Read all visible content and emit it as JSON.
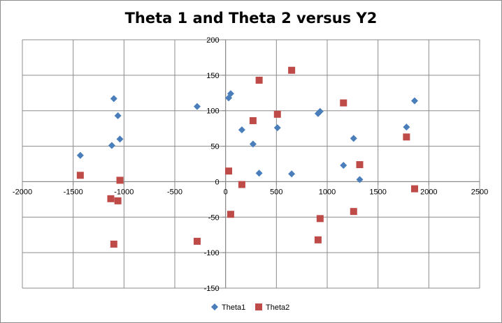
{
  "chart_data": {
    "type": "scatter",
    "title": "Theta 1 and Theta 2 versus Y2",
    "xlabel": "",
    "ylabel": "",
    "xlim": [
      -2000,
      2500
    ],
    "ylim": [
      -150,
      200
    ],
    "xticks": [
      -2000,
      -1500,
      -1000,
      -500,
      0,
      500,
      1000,
      1500,
      2000,
      2500
    ],
    "yticks": [
      -150,
      -100,
      -50,
      0,
      50,
      100,
      150,
      200
    ],
    "xtick_labels": [
      "-2000",
      "-1500",
      "-1000",
      "-500",
      "0",
      "500",
      "1000",
      "1500",
      "2000",
      "2500"
    ],
    "ytick_labels": [
      "-150",
      "-100",
      "-50",
      "0",
      "50",
      "100",
      "150",
      "200"
    ],
    "grid": true,
    "legend": "bottom",
    "series": [
      {
        "name": "Theta1",
        "marker": "diamond",
        "color": "#4a7ebb",
        "points": [
          [
            -1430,
            37
          ],
          [
            -1100,
            117
          ],
          [
            -1120,
            51
          ],
          [
            -1060,
            93
          ],
          [
            -1040,
            60
          ],
          [
            -280,
            106
          ],
          [
            30,
            118
          ],
          [
            50,
            124
          ],
          [
            160,
            73
          ],
          [
            270,
            53
          ],
          [
            330,
            12
          ],
          [
            510,
            76
          ],
          [
            650,
            11
          ],
          [
            910,
            96
          ],
          [
            930,
            99
          ],
          [
            1160,
            23
          ],
          [
            1260,
            61
          ],
          [
            1320,
            3
          ],
          [
            1780,
            77
          ],
          [
            1860,
            114
          ]
        ]
      },
      {
        "name": "Theta2",
        "marker": "square",
        "color": "#be4b48",
        "points": [
          [
            -1430,
            9
          ],
          [
            -1130,
            -24
          ],
          [
            -1060,
            -27
          ],
          [
            -1040,
            2
          ],
          [
            -1100,
            -88
          ],
          [
            -280,
            -84
          ],
          [
            30,
            15
          ],
          [
            50,
            -46
          ],
          [
            160,
            -4
          ],
          [
            270,
            86
          ],
          [
            330,
            143
          ],
          [
            510,
            95
          ],
          [
            650,
            157
          ],
          [
            910,
            -82
          ],
          [
            930,
            -52
          ],
          [
            1160,
            111
          ],
          [
            1260,
            -42
          ],
          [
            1320,
            24
          ],
          [
            1780,
            63
          ],
          [
            1860,
            -10
          ]
        ]
      }
    ]
  }
}
